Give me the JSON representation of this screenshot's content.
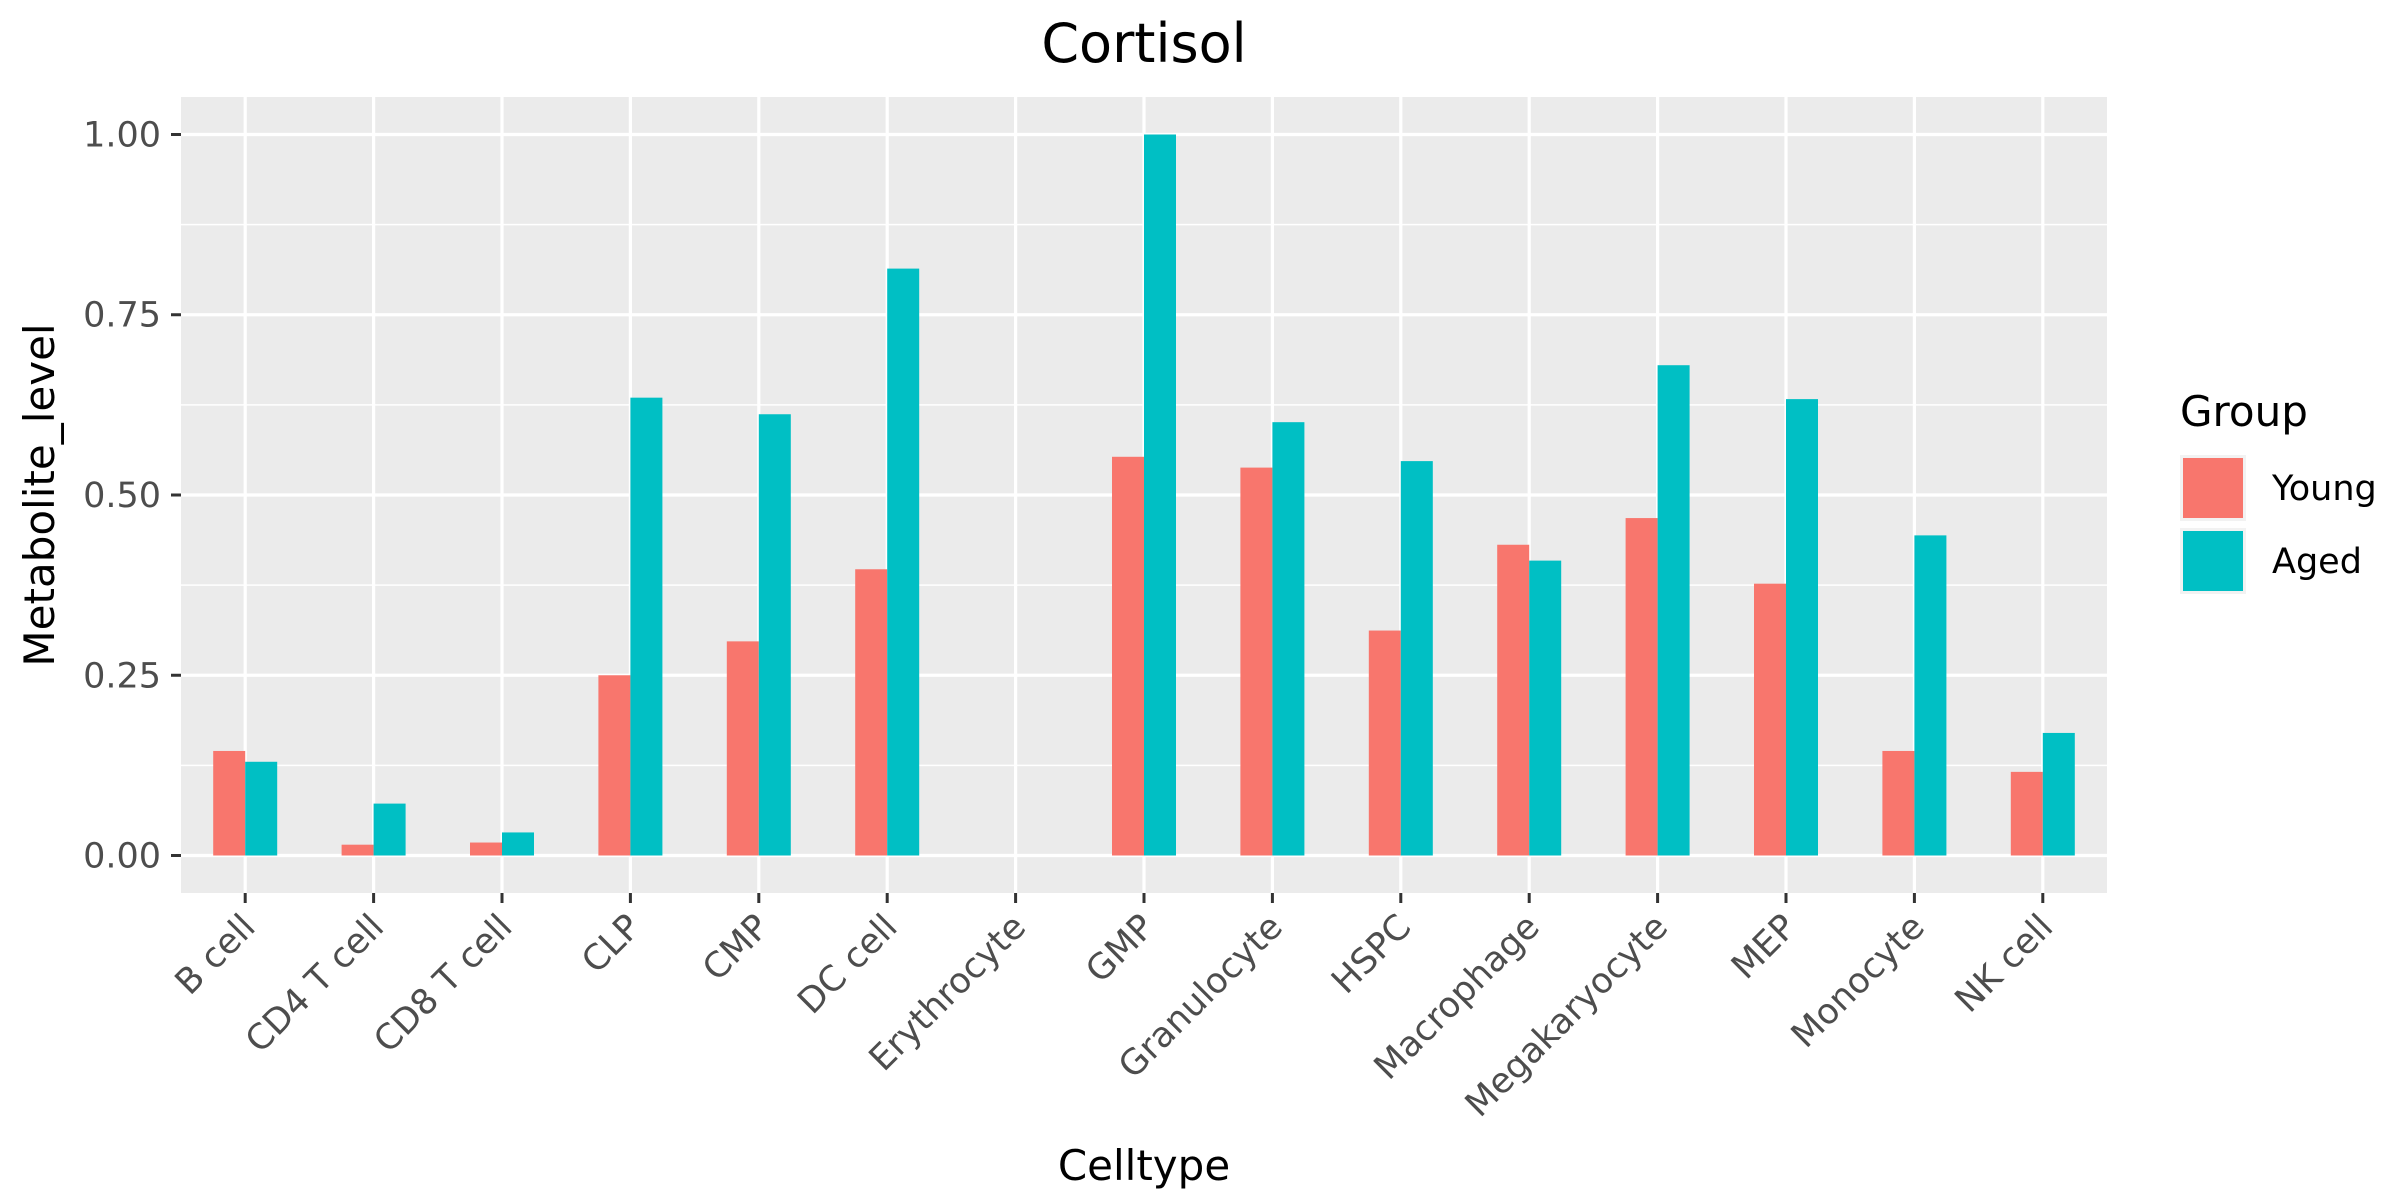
{
  "chart_data": {
    "type": "bar",
    "title": "Cortisol",
    "xlabel": "Celltype",
    "ylabel": "Metabolite_level",
    "categories": [
      "B cell",
      "CD4 T cell",
      "CD8 T cell",
      "CLP",
      "CMP",
      "DC cell",
      "Erythrocyte",
      "GMP",
      "Granulocyte",
      "HSPC",
      "Macrophage",
      "Megakaryocyte",
      "MEP",
      "Monocyte",
      "NK cell"
    ],
    "series": [
      {
        "name": "Young",
        "color": "#F8766D",
        "values": [
          0.145,
          0.015,
          0.018,
          0.25,
          0.297,
          0.397,
          0.0,
          0.553,
          0.538,
          0.312,
          0.431,
          0.468,
          0.377,
          0.145,
          0.116
        ]
      },
      {
        "name": "Aged",
        "color": "#00BFC4",
        "values": [
          0.13,
          0.072,
          0.032,
          0.635,
          0.612,
          0.814,
          0.0,
          1.0,
          0.601,
          0.547,
          0.409,
          0.68,
          0.633,
          0.444,
          0.17
        ]
      }
    ],
    "ylim": [
      -0.052,
      1.052
    ],
    "yticks": [
      0.0,
      0.25,
      0.5,
      0.75,
      1.0
    ],
    "ytick_labels": [
      "0.00",
      "0.25",
      "0.50",
      "0.75",
      "1.00"
    ],
    "legend": {
      "title": "Group",
      "position": "right"
    },
    "grid": true,
    "panel_color": "#EBEBEB"
  }
}
